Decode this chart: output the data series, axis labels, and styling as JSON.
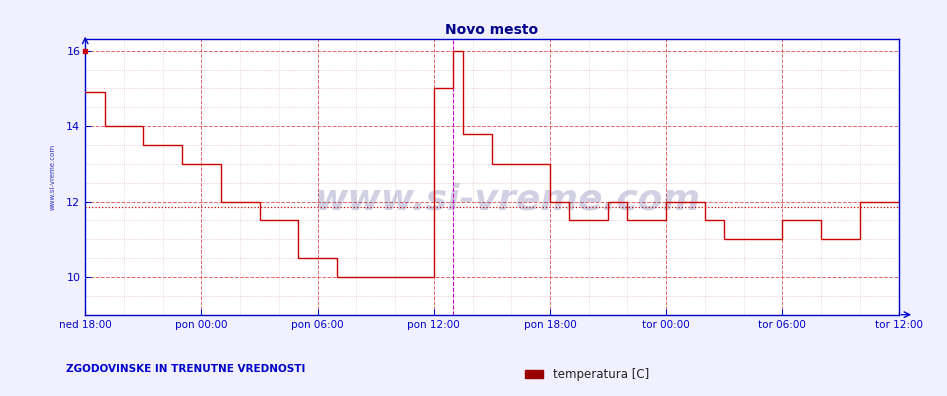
{
  "title": "Novo mesto",
  "bg_color": "#f0f0ff",
  "plot_bg_color": "#ffffff",
  "line_color": "#cc0000",
  "grid_color": "#dd6666",
  "grid_minor_color": "#ddaaaa",
  "axis_color": "#0000cc",
  "title_color": "#00008b",
  "label_color": "#0000aa",
  "legend_text": "temperatura [C]",
  "legend_label": "ZGODOVINSKE IN TRENUTNE VREDNOSTI",
  "ylim": [
    9.0,
    16.3
  ],
  "yticks": [
    10,
    12,
    14,
    16
  ],
  "xtick_positions": [
    0,
    6,
    12,
    18,
    24,
    30,
    36,
    42
  ],
  "xtick_labels": [
    "ned 18:00",
    "pon 00:00",
    "pon 06:00",
    "pon 12:00",
    "pon 18:00",
    "tor 00:00",
    "tor 06:00",
    "tor 12:00"
  ],
  "x_total": 42,
  "avg_line_y": 11.85,
  "magenta_x": 19.0,
  "magenta_x2": 42.0,
  "data_x": [
    0,
    1,
    1,
    3,
    3,
    5,
    5,
    7,
    7,
    9,
    9,
    11,
    11,
    13,
    13,
    14,
    14,
    17,
    17,
    18,
    18,
    19,
    19,
    19.5,
    19.5,
    21,
    21,
    24,
    24,
    25,
    25,
    27,
    27,
    28,
    28,
    30,
    30,
    32,
    32,
    33,
    33,
    36,
    36,
    38,
    38,
    40,
    40,
    42
  ],
  "data_y": [
    14.9,
    14.9,
    14.0,
    14.0,
    13.5,
    13.5,
    13.0,
    13.0,
    12.0,
    12.0,
    11.5,
    11.5,
    10.5,
    10.5,
    10.0,
    10.0,
    10.0,
    10.0,
    10.0,
    10.0,
    15.0,
    15.0,
    16.0,
    16.0,
    13.8,
    13.8,
    13.0,
    13.0,
    12.0,
    12.0,
    11.5,
    11.5,
    12.0,
    12.0,
    11.5,
    11.5,
    12.0,
    12.0,
    11.5,
    11.5,
    11.0,
    11.0,
    11.5,
    11.5,
    11.0,
    11.0,
    12.0,
    12.0
  ]
}
